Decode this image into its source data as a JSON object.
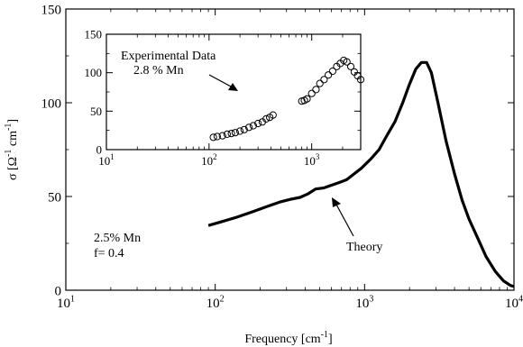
{
  "chart_data": [
    {
      "type": "line",
      "title": "",
      "xlabel": "Frequency [cm^-1]",
      "ylabel": "σ [Ω^-1 cm^-1]",
      "x_scale": "log",
      "xlim": [
        10,
        10000
      ],
      "ylim": [
        0,
        150
      ],
      "x_ticks": [
        10,
        100,
        1000,
        10000
      ],
      "y_ticks": [
        0,
        50,
        100,
        150
      ],
      "grid": false,
      "series": [
        {
          "name": "Theory",
          "style": "thick black line",
          "points": [
            [
              90,
              34.5
            ],
            [
              110,
              36.5
            ],
            [
              140,
              39
            ],
            [
              180,
              42
            ],
            [
              220,
              44.5
            ],
            [
              270,
              47
            ],
            [
              320,
              48.5
            ],
            [
              370,
              49.5
            ],
            [
              420,
              51.5
            ],
            [
              470,
              54
            ],
            [
              530,
              54.5
            ],
            [
              600,
              56
            ],
            [
              680,
              57.5
            ],
            [
              760,
              59
            ],
            [
              850,
              62
            ],
            [
              950,
              65
            ],
            [
              1100,
              70
            ],
            [
              1250,
              75
            ],
            [
              1400,
              82
            ],
            [
              1600,
              90
            ],
            [
              1800,
              100
            ],
            [
              2000,
              110
            ],
            [
              2200,
              118
            ],
            [
              2400,
              121.5
            ],
            [
              2600,
              121.5
            ],
            [
              2800,
              116
            ],
            [
              3100,
              100
            ],
            [
              3500,
              80
            ],
            [
              4000,
              62
            ],
            [
              4500,
              48
            ],
            [
              5000,
              38
            ],
            [
              5700,
              28
            ],
            [
              6500,
              18
            ],
            [
              7500,
              10
            ],
            [
              8500,
              5
            ],
            [
              9500,
              2.5
            ],
            [
              10000,
              2
            ]
          ]
        }
      ],
      "annotations": [
        {
          "lines": [
            "2.5% Mn",
            "f= 0.4"
          ]
        },
        {
          "text": "Theory",
          "arrow_to": [
            570,
            57
          ]
        }
      ]
    },
    {
      "type": "scatter",
      "title": "",
      "xlabel": "",
      "ylabel": "",
      "x_scale": "log",
      "xlim": [
        10,
        3000
      ],
      "ylim": [
        0,
        150
      ],
      "x_ticks": [
        10,
        100,
        1000
      ],
      "y_ticks": [
        0,
        50,
        100,
        150
      ],
      "grid": false,
      "series": [
        {
          "name": "Experimental Data",
          "marker": "open circle",
          "points": [
            [
              110,
              16
            ],
            [
              120,
              17
            ],
            [
              135,
              18
            ],
            [
              150,
              20
            ],
            [
              165,
              21
            ],
            [
              180,
              22
            ],
            [
              200,
              24
            ],
            [
              220,
              26
            ],
            [
              245,
              29
            ],
            [
              270,
              31
            ],
            [
              300,
              34
            ],
            [
              330,
              36
            ],
            [
              360,
              40
            ],
            [
              390,
              42
            ],
            [
              420,
              45
            ],
            [
              800,
              63
            ],
            [
              850,
              64
            ],
            [
              900,
              66
            ],
            [
              1000,
              73
            ],
            [
              1100,
              78
            ],
            [
              1200,
              86
            ],
            [
              1320,
              91
            ],
            [
              1450,
              97
            ],
            [
              1600,
              102
            ],
            [
              1750,
              108
            ],
            [
              1900,
              112
            ],
            [
              2050,
              116
            ],
            [
              2200,
              114
            ],
            [
              2400,
              108
            ],
            [
              2600,
              101
            ],
            [
              2800,
              96
            ],
            [
              3000,
              91
            ]
          ]
        }
      ],
      "annotations": [
        {
          "lines": [
            "Experimental Data",
            "2.8 % Mn"
          ],
          "arrow_to": [
            350,
            95
          ]
        }
      ]
    }
  ],
  "labels": {
    "main_annot_line1": "2.5% Mn",
    "main_annot_line2": "f= 0.4",
    "theory_label": "Theory",
    "inset_annot_line1": "Experimental Data",
    "inset_annot_line2": "2.8 % Mn"
  },
  "colors": {
    "line": "#000000",
    "background": "#ffffff"
  }
}
